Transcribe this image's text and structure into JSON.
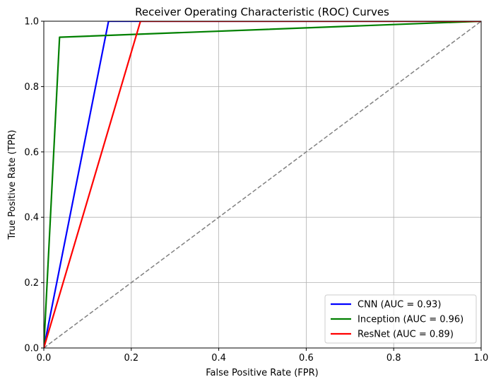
{
  "chart_data": {
    "type": "line",
    "title": "Receiver Operating Characteristic (ROC) Curves",
    "xlabel": "False Positive Rate (FPR)",
    "ylabel": "True Positive Rate (TPR)",
    "xlim": [
      0.0,
      1.0
    ],
    "ylim": [
      0.0,
      1.0
    ],
    "xticks": [
      "0.0",
      "0.2",
      "0.4",
      "0.6",
      "0.8",
      "1.0"
    ],
    "yticks": [
      "0.0",
      "0.2",
      "0.4",
      "0.6",
      "0.8",
      "1.0"
    ],
    "grid": true,
    "legend_position": "bottom-right",
    "series": [
      {
        "name": "CNN (AUC = 0.93)",
        "color": "#0000ff",
        "x": [
          0.0,
          0.148,
          1.0
        ],
        "y": [
          0.0,
          1.0,
          1.0
        ]
      },
      {
        "name": "Inception (AUC = 0.96)",
        "color": "#008000",
        "x": [
          0.0,
          0.036,
          1.0
        ],
        "y": [
          0.0,
          0.951,
          1.0
        ]
      },
      {
        "name": "ResNet (AUC = 0.89)",
        "color": "#ff0000",
        "x": [
          0.0,
          0.221,
          1.0
        ],
        "y": [
          0.0,
          1.0,
          1.0
        ]
      }
    ],
    "reference_line": {
      "x": [
        0.0,
        1.0
      ],
      "y": [
        0.0,
        1.0
      ],
      "color": "#808080",
      "style": "dashed"
    }
  }
}
